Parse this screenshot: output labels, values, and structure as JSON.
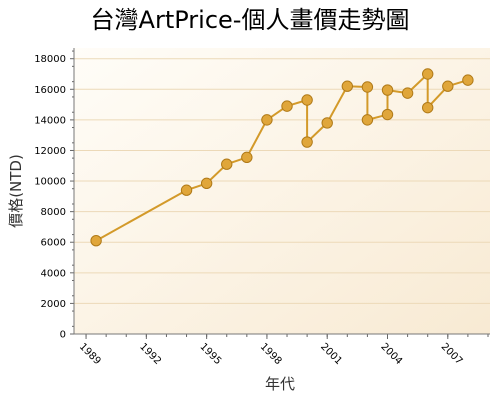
{
  "chart_data": {
    "type": "line",
    "title": "台灣ArtPrice-個人畫價走勢圖",
    "xlabel": "年代",
    "ylabel": "價格(NTD)",
    "xlim": [
      1988.4,
      2009.1
    ],
    "ylim": [
      0,
      18700
    ],
    "x_ticks": [
      1989,
      1992,
      1995,
      1998,
      2001,
      2004,
      2007
    ],
    "y_ticks": [
      0,
      2000,
      4000,
      6000,
      8000,
      10000,
      12000,
      14000,
      16000,
      18000
    ],
    "grid": true,
    "legend": "none",
    "series": [
      {
        "x": [
          1989.5,
          1994,
          1995,
          1996,
          1997,
          1998,
          1999,
          2000,
          2000,
          2001,
          2002,
          2003,
          2003,
          2004,
          2004,
          2005,
          2006,
          2006,
          2007,
          2008
        ],
        "y": [
          6100,
          9400,
          9850,
          11100,
          11550,
          14000,
          14900,
          15300,
          12550,
          13800,
          16200,
          16150,
          14000,
          14350,
          15950,
          15750,
          17000,
          14800,
          16200,
          16600
        ]
      }
    ]
  },
  "colors": {
    "line": "#d39a2a",
    "marker_fill": "#e0a63a",
    "marker_stroke": "#b07a18",
    "bg_light": "#fffdf8",
    "bg_dark": "#f8ead3",
    "grid": "#ecd9b8"
  }
}
